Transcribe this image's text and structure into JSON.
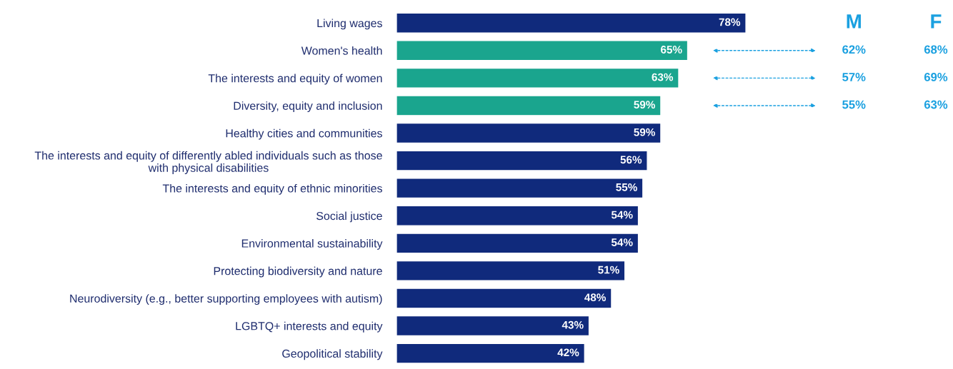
{
  "chart_data": {
    "type": "bar",
    "orientation": "horizontal",
    "grid": false,
    "legend": false,
    "categories": [
      "Living wages",
      "Women's health",
      "The interests and equity of women",
      "Diversity, equity and inclusion",
      "Healthy cities and communities",
      "The interests and equity of differently abled individuals such as those\nwith physical disabilities",
      "The interests and equity of ethnic minorities",
      "Social justice",
      "Environmental sustainability",
      "Protecting biodiversity and nature",
      "Neurodiversity (e.g., better supporting employees with autism)",
      "LGBTQ+ interests and equity",
      "Geopolitical stability"
    ],
    "values": [
      78,
      65,
      63,
      59,
      59,
      56,
      55,
      54,
      54,
      51,
      48,
      43,
      42
    ],
    "value_labels": [
      "78%",
      "65%",
      "63%",
      "59%",
      "59%",
      "56%",
      "55%",
      "54%",
      "54%",
      "51%",
      "48%",
      "43%",
      "42%"
    ],
    "colors": [
      "#102a7c",
      "#1aa58e",
      "#1aa58e",
      "#1aa58e",
      "#102a7c",
      "#102a7c",
      "#102a7c",
      "#102a7c",
      "#102a7c",
      "#102a7c",
      "#102a7c",
      "#102a7c",
      "#102a7c"
    ],
    "annotations": [
      "M",
      "F",
      "62%",
      "68%",
      "57%",
      "69%",
      "55%",
      "63%"
    ]
  }
}
